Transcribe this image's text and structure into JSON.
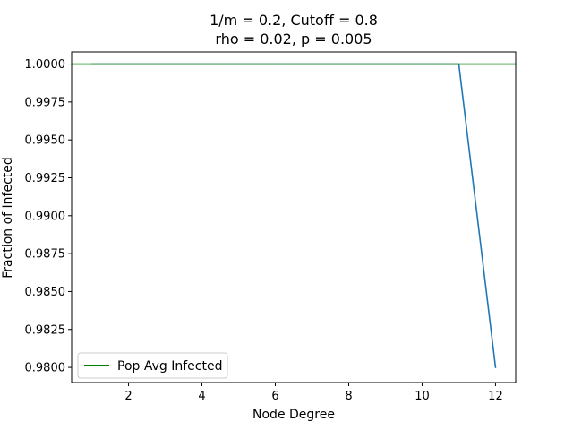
{
  "chart_data": {
    "type": "line",
    "title_lines": [
      "1/m = 0.2, Cutoff = 0.8",
      "rho = 0.02, p = 0.005"
    ],
    "xlabel": "Node Degree",
    "ylabel": "Fraction of Infected",
    "xlim": [
      0.45,
      12.55
    ],
    "ylim": [
      0.979,
      1.0008
    ],
    "xticks": [
      2,
      4,
      6,
      8,
      10,
      12
    ],
    "yticks": [
      1.0,
      0.9975,
      0.995,
      0.9925,
      0.99,
      0.9875,
      0.985,
      0.9825,
      0.98
    ],
    "xtick_labels": [
      "2",
      "4",
      "6",
      "8",
      "10",
      "12"
    ],
    "ytick_labels": [
      "1.0000",
      "0.9975",
      "0.9950",
      "0.9925",
      "0.9900",
      "0.9875",
      "0.9850",
      "0.9825",
      "0.9800"
    ],
    "grid": false,
    "legend_position": "lower-left",
    "series": [
      {
        "x": [
          1,
          2,
          3,
          4,
          5,
          6,
          7,
          8,
          9,
          10,
          11,
          12
        ],
        "y": [
          1.0,
          1.0,
          1.0,
          1.0,
          1.0,
          1.0,
          1.0,
          1.0,
          1.0,
          1.0,
          1.0,
          0.98
        ],
        "color": "#1f77b4"
      },
      {
        "name": "Pop Avg Infected",
        "type": "hline",
        "y": 1.0,
        "color": "#008000"
      }
    ]
  }
}
